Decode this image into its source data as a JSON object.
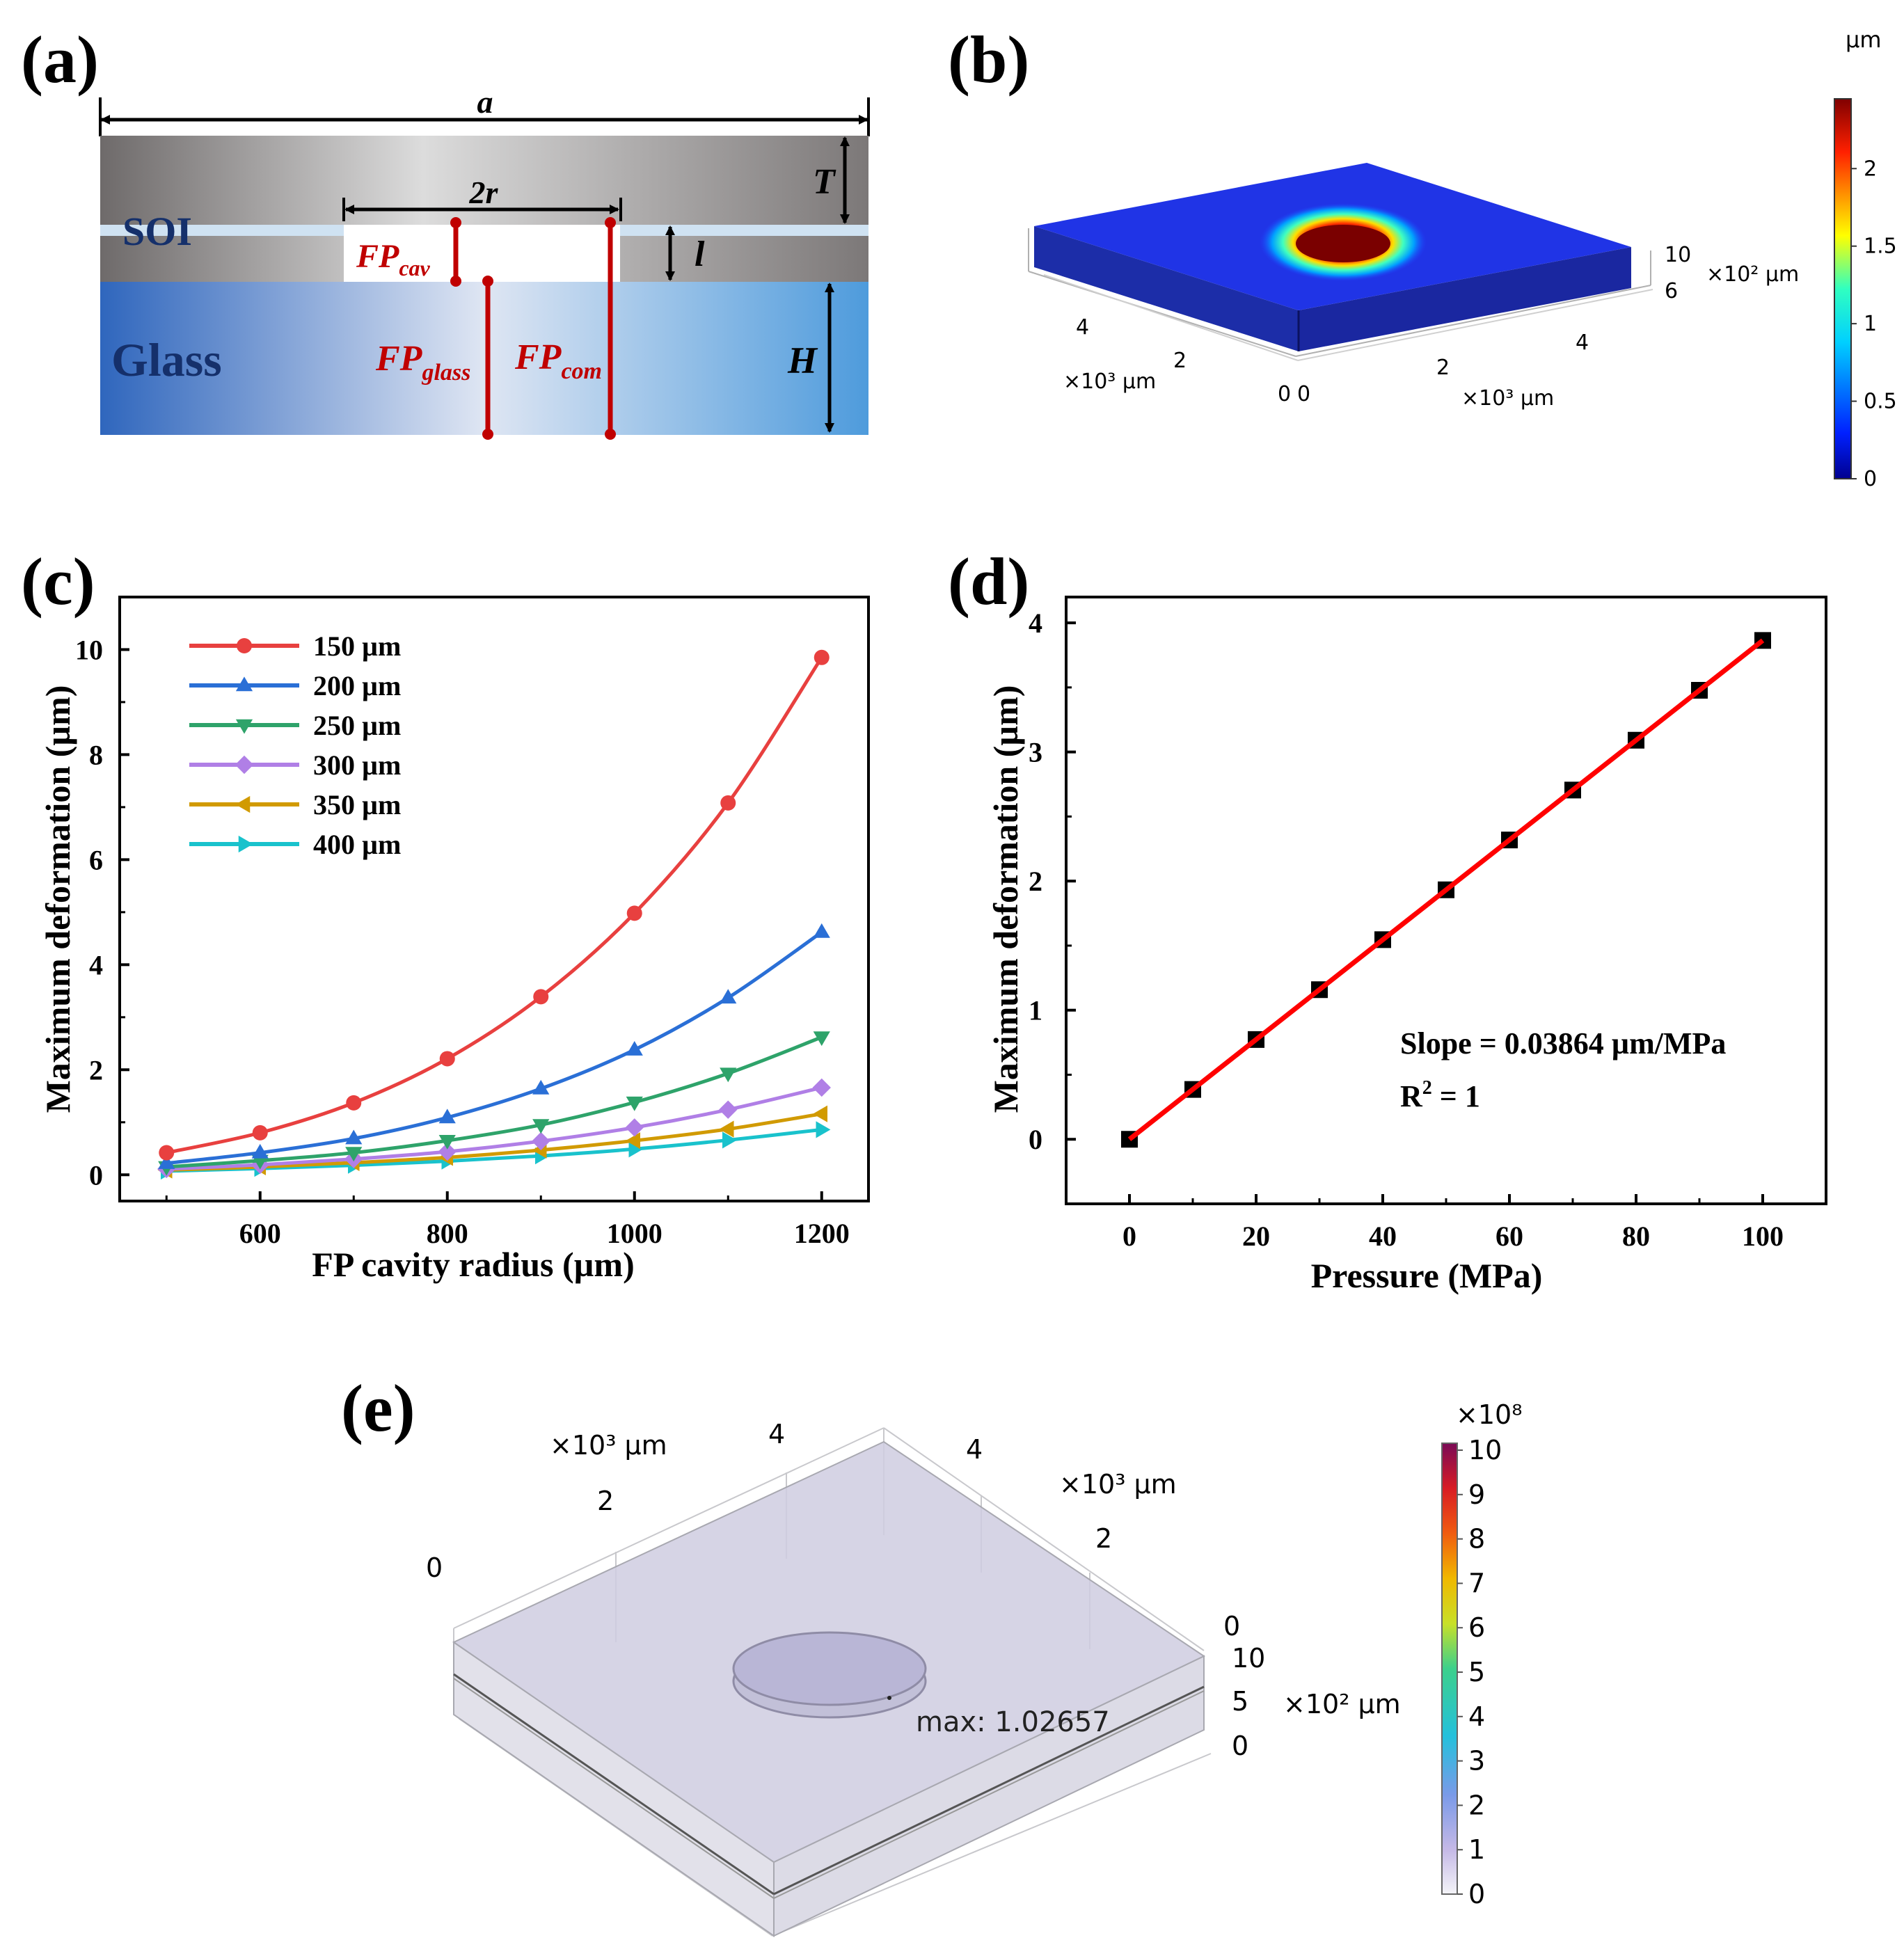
{
  "panels": {
    "a": {
      "label": "(a)",
      "dim_a": "a",
      "dim_2r": "2r",
      "dim_T": "T",
      "dim_l": "l",
      "dim_H": "H",
      "layer_soi": "SOI",
      "layer_glass": "Glass",
      "fp_cav_base": "FP",
      "fp_cav_sub": "cav",
      "fp_glass_base": "FP",
      "fp_glass_sub": "glass",
      "fp_com_base": "FP",
      "fp_com_sub": "com"
    },
    "b": {
      "label": "(b)",
      "colorbar_unit": "µm",
      "colorbar_ticks": [
        "0",
        "0.5",
        "1",
        "1.5",
        "2"
      ],
      "axis_x_ticks": [
        "4",
        "2",
        "0"
      ],
      "axis_x_unit": "×10³ µm",
      "axis_y_ticks": [
        "0",
        "2",
        "4"
      ],
      "axis_y_unit": "×10³ µm",
      "axis_z_ticks": [
        "10",
        "6"
      ],
      "axis_z_unit": "×10² µm"
    },
    "e": {
      "label": "(e)",
      "max_text": "max: 1.02657",
      "colorbar_exponent": "×10⁸",
      "colorbar_ticks": [
        "0",
        "1",
        "2",
        "3",
        "4",
        "5",
        "6",
        "7",
        "8",
        "9",
        "10"
      ],
      "axis_back_left_ticks": [
        "0",
        "2",
        "4"
      ],
      "axis_back_left_unit": "×10³ µm",
      "axis_back_right_ticks": [
        "4",
        "2",
        "0"
      ],
      "axis_back_right_unit": "×10³ µm",
      "axis_z_ticks": [
        "10",
        "5",
        "0"
      ],
      "axis_z_unit": "×10² µm"
    }
  },
  "colors": {
    "series_150": "#e8403f",
    "series_200": "#2a6fd6",
    "series_250": "#2ea36a",
    "series_300": "#b07fe6",
    "series_350": "#d19a00",
    "series_400": "#19c2cc",
    "fit_line": "#ff0000",
    "fp_marker": "#c00000",
    "label_blue": "#15306b"
  },
  "chart_data": [
    {
      "panel": "(c)",
      "type": "line",
      "xlabel": "FP cavity radius (µm)",
      "ylabel": "Maximum deformation (µm)",
      "xlim": [
        450,
        1250
      ],
      "ylim": [
        -0.5,
        11
      ],
      "xticks": [
        600,
        800,
        1000,
        1200
      ],
      "yticks": [
        0,
        2,
        4,
        6,
        8,
        10
      ],
      "legend_position": "top-left",
      "x": [
        500,
        600,
        700,
        800,
        900,
        1000,
        1100,
        1200
      ],
      "series": [
        {
          "name": "150 µm",
          "marker": "circle",
          "color": "#e8403f",
          "values": [
            0.42,
            0.8,
            1.37,
            2.21,
            3.39,
            4.98,
            7.08,
            9.85
          ]
        },
        {
          "name": "200 µm",
          "marker": "triangle-up",
          "color": "#2a6fd6",
          "values": [
            0.22,
            0.42,
            0.69,
            1.09,
            1.64,
            2.38,
            3.37,
            4.62
          ]
        },
        {
          "name": "250 µm",
          "marker": "triangle-down",
          "color": "#2ea36a",
          "values": [
            0.15,
            0.27,
            0.42,
            0.65,
            0.95,
            1.38,
            1.93,
            2.62
          ]
        },
        {
          "name": "300 µm",
          "marker": "diamond",
          "color": "#b07fe6",
          "values": [
            0.11,
            0.19,
            0.3,
            0.44,
            0.64,
            0.9,
            1.24,
            1.66
          ]
        },
        {
          "name": "350 µm",
          "marker": "triangle-left",
          "color": "#d19a00",
          "values": [
            0.09,
            0.15,
            0.23,
            0.33,
            0.47,
            0.65,
            0.87,
            1.16
          ]
        },
        {
          "name": "400 µm",
          "marker": "triangle-right",
          "color": "#19c2cc",
          "values": [
            0.07,
            0.12,
            0.18,
            0.26,
            0.36,
            0.49,
            0.66,
            0.86
          ]
        }
      ]
    },
    {
      "panel": "(d)",
      "type": "scatter",
      "xlabel": "Pressure (MPa)",
      "ylabel": "Maximum deformation (µm)",
      "xlim": [
        -10,
        110
      ],
      "ylim": [
        -0.5,
        4.2
      ],
      "xticks": [
        0,
        20,
        40,
        60,
        80,
        100
      ],
      "yticks": [
        0,
        1,
        2,
        3,
        4
      ],
      "x": [
        0,
        10,
        20,
        30,
        40,
        50,
        60,
        70,
        80,
        90,
        100
      ],
      "values": [
        0,
        0.386,
        0.773,
        1.159,
        1.546,
        1.932,
        2.318,
        2.705,
        3.091,
        3.478,
        3.864
      ],
      "fit": {
        "slope": 0.03864,
        "intercept": 0
      },
      "annotation_slope": "Slope = 0.03864 µm/MPa",
      "annotation_r2_base": "R",
      "annotation_r2_sup": "2",
      "annotation_r2_rest": " = 1"
    }
  ]
}
